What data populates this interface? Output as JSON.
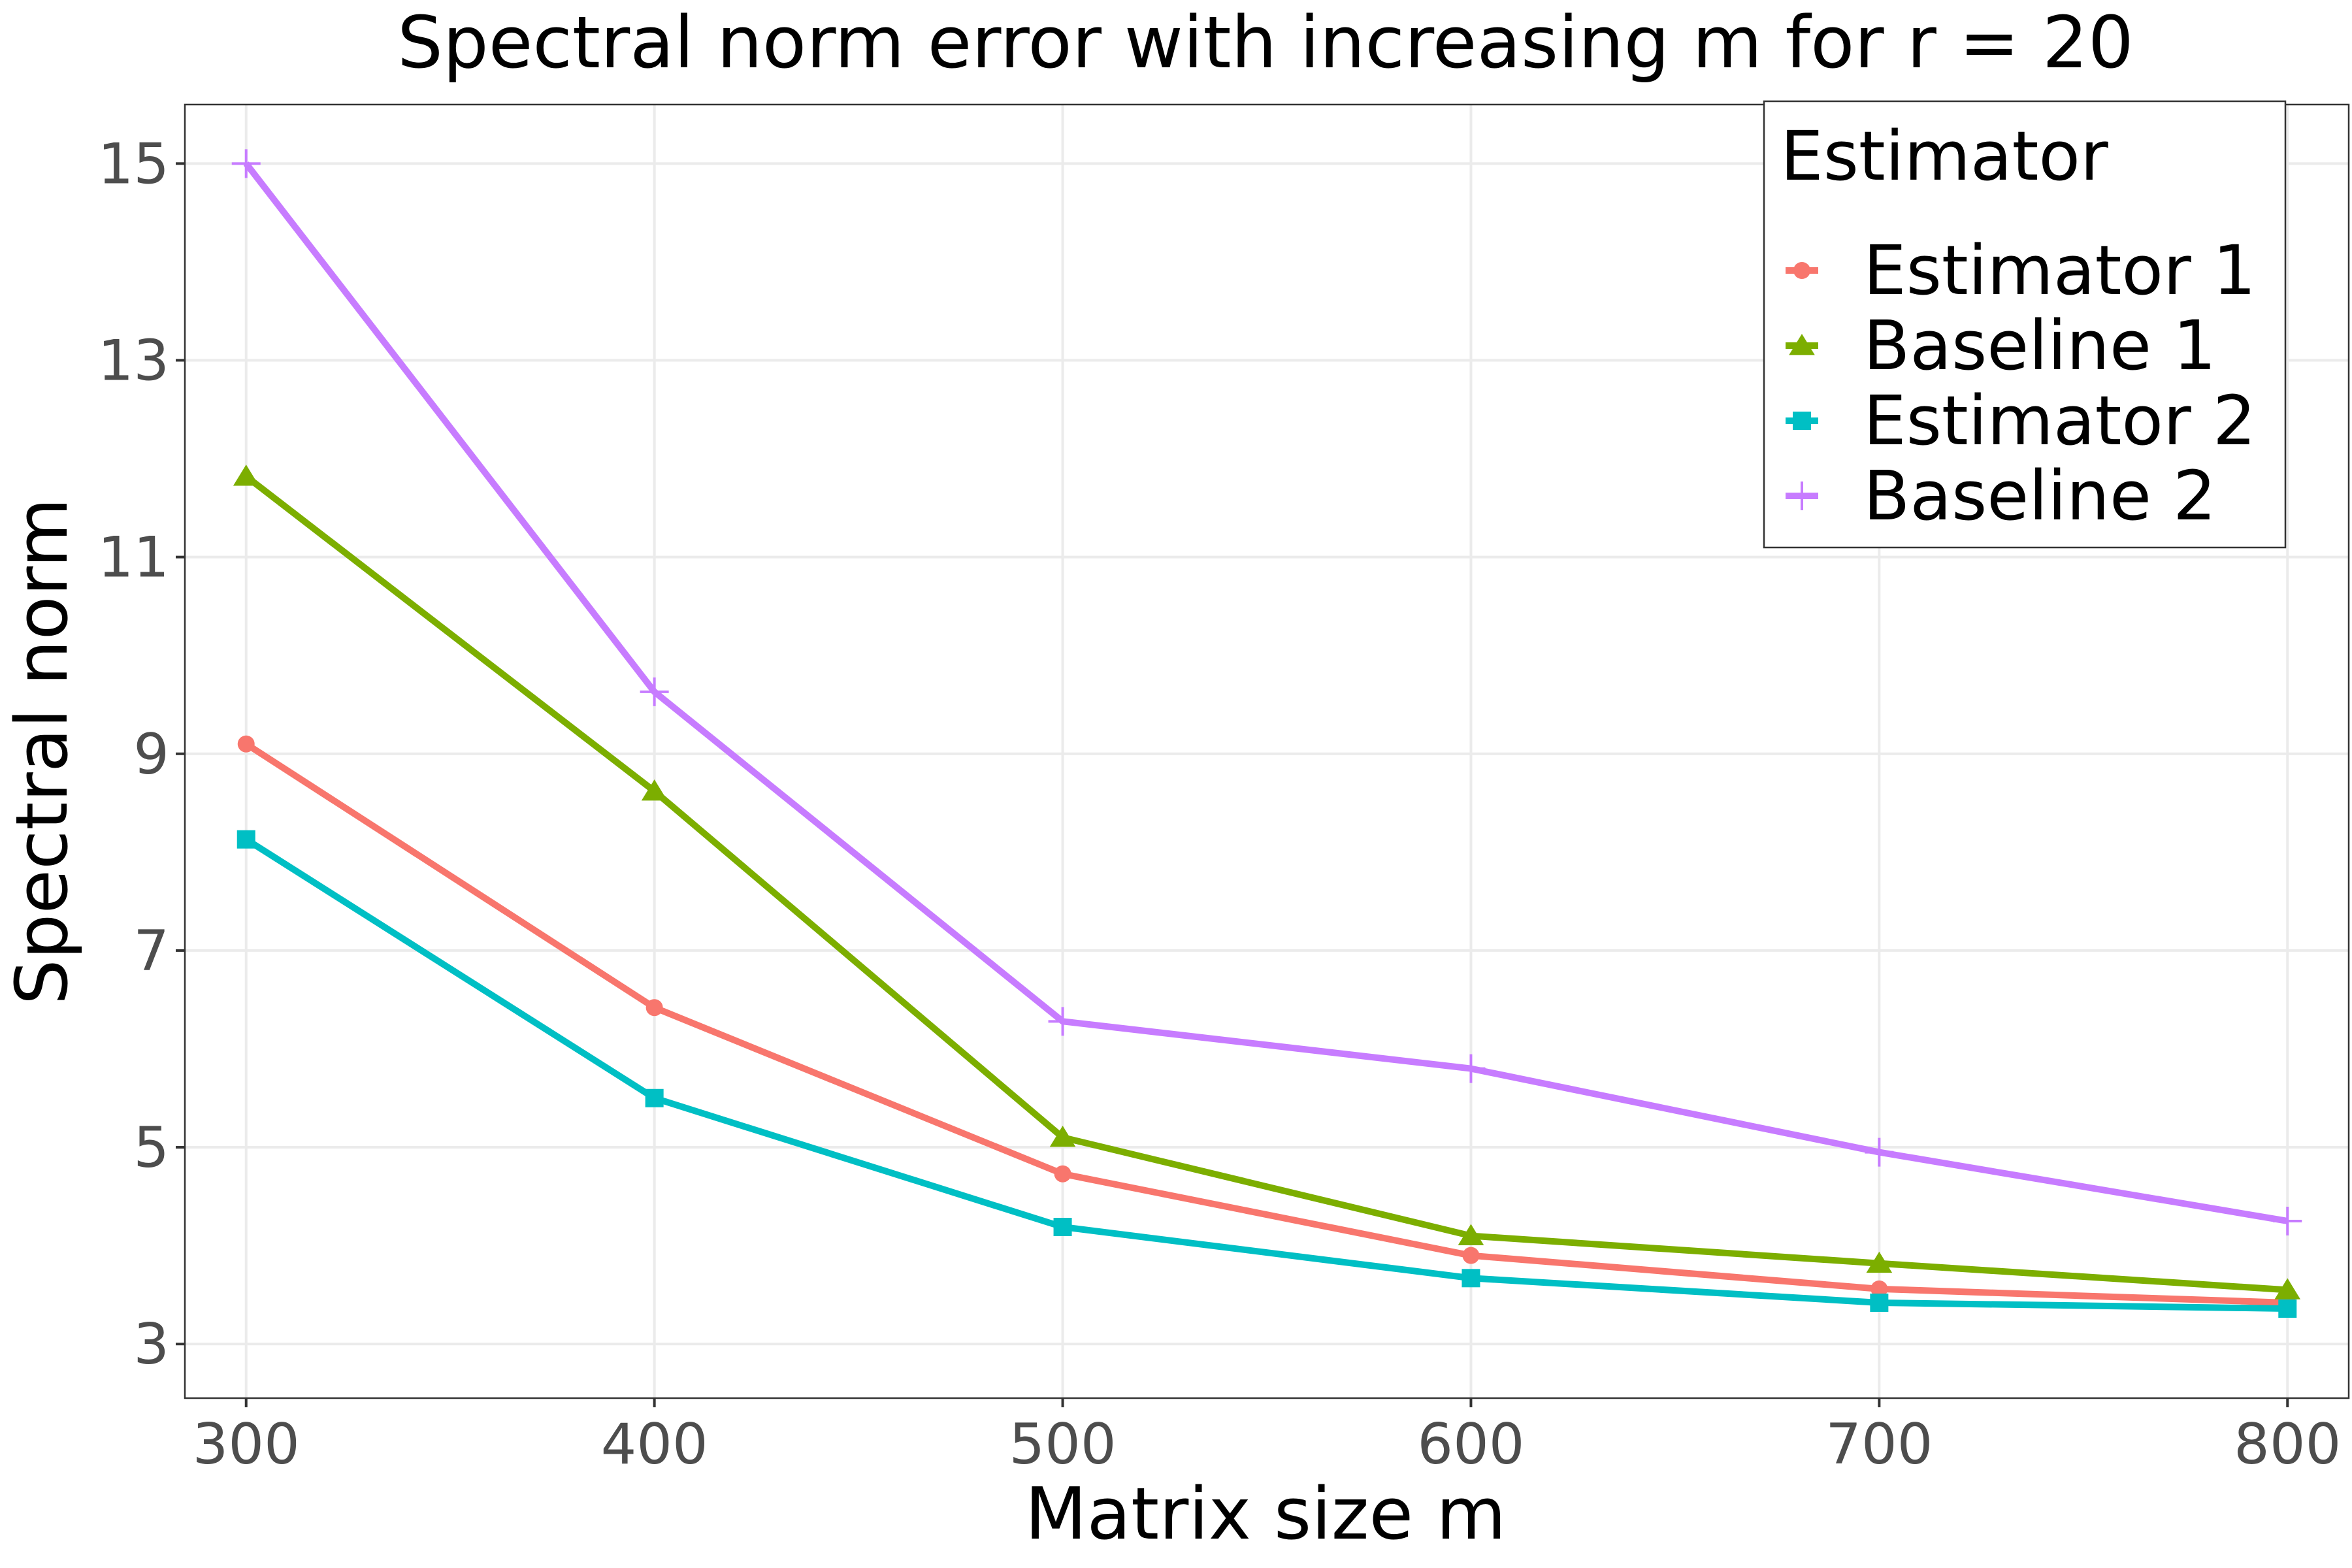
{
  "chart_data": {
    "type": "line",
    "title": "Spectral norm error with increasing m for r = 20",
    "xlabel": "Matrix size m",
    "ylabel": "Spectral norm",
    "x": [
      300,
      400,
      500,
      600,
      700,
      800
    ],
    "x_ticks": [
      "300",
      "400",
      "500",
      "600",
      "700",
      "800"
    ],
    "y_ticks": [
      "3",
      "5",
      "7",
      "9",
      "11",
      "13",
      "15"
    ],
    "xlim": [
      285,
      815
    ],
    "ylim": [
      2.45,
      15.6
    ],
    "grid": true,
    "legend": {
      "title": "Estimator",
      "position": "top-right"
    },
    "series": [
      {
        "name": "Estimator 1",
        "color": "#F8766D",
        "marker": "circle",
        "values": [
          9.1,
          6.42,
          4.73,
          3.9,
          3.56,
          3.42
        ]
      },
      {
        "name": "Baseline 1",
        "color": "#7CAE00",
        "marker": "triangle",
        "values": [
          11.82,
          8.62,
          5.1,
          4.1,
          3.82,
          3.55
        ]
      },
      {
        "name": "Estimator 2",
        "color": "#00BFC4",
        "marker": "square",
        "values": [
          8.13,
          5.5,
          4.19,
          3.67,
          3.42,
          3.36
        ]
      },
      {
        "name": "Baseline 2",
        "color": "#C77CFF",
        "marker": "plus",
        "values": [
          15.0,
          9.63,
          6.28,
          5.8,
          4.95,
          4.25
        ]
      }
    ]
  }
}
